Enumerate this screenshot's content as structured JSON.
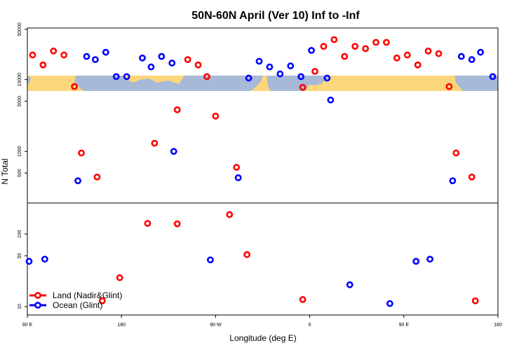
{
  "chart_data": {
    "type": "scatter",
    "title": "50N-60N April (Ver 10)   Inf to -Inf",
    "xlabel": "Longitude (deg E)",
    "ylabel": "N Total",
    "x_range": [
      -90,
      180
    ],
    "x_ticks": [
      {
        "value": -90,
        "label": "90 E"
      },
      {
        "value": -36,
        "label": "180"
      },
      {
        "value": 18,
        "label": "90 W"
      },
      {
        "value": 72,
        "label": "0"
      },
      {
        "value": 126,
        "label": "90 E"
      },
      {
        "value": 180,
        "label": "180"
      }
    ],
    "scale": "log",
    "upper_panel": {
      "y_range": [
        200,
        50000
      ],
      "y_ticks": [
        500,
        1000,
        5000,
        10000,
        50000
      ],
      "map_band": true
    },
    "lower_panel": {
      "y_range": [
        8,
        250
      ],
      "y_ticks": [
        10,
        50,
        100
      ]
    },
    "legend": {
      "position": "bottom-left",
      "entries": [
        {
          "label": "Land (Nadir&Glint)",
          "color": "#ff0000"
        },
        {
          "label": "Ocean (Glint)",
          "color": "#0000ff"
        }
      ]
    },
    "series": [
      {
        "name": "Land (Nadir&Glint)",
        "color": "#ff0000",
        "upper": [
          {
            "x": -87,
            "y": 22000
          },
          {
            "x": -81,
            "y": 16000
          },
          {
            "x": -75,
            "y": 25000
          },
          {
            "x": -69,
            "y": 22000
          },
          {
            "x": -63,
            "y": 8000
          },
          {
            "x": -59,
            "y": 950
          },
          {
            "x": -50,
            "y": 440
          },
          {
            "x": -17,
            "y": 1300
          },
          {
            "x": -4,
            "y": 3800
          },
          {
            "x": 2,
            "y": 19000
          },
          {
            "x": 8,
            "y": 16000
          },
          {
            "x": 13,
            "y": 11000
          },
          {
            "x": 18,
            "y": 3100
          },
          {
            "x": 30,
            "y": 600
          },
          {
            "x": 68,
            "y": 7800
          },
          {
            "x": 75,
            "y": 13000
          },
          {
            "x": 80,
            "y": 29000
          },
          {
            "x": 86,
            "y": 36000
          },
          {
            "x": 92,
            "y": 21000
          },
          {
            "x": 98,
            "y": 29000
          },
          {
            "x": 104,
            "y": 27000
          },
          {
            "x": 110,
            "y": 33000
          },
          {
            "x": 116,
            "y": 33000
          },
          {
            "x": 122,
            "y": 20000
          },
          {
            "x": 128,
            "y": 22000
          },
          {
            "x": 134,
            "y": 16000
          },
          {
            "x": 140,
            "y": 25000
          },
          {
            "x": 146,
            "y": 23000
          },
          {
            "x": 152,
            "y": 8000
          },
          {
            "x": 156,
            "y": 950
          },
          {
            "x": 165,
            "y": 440
          }
        ],
        "lower": [
          {
            "x": -47,
            "y": 12
          },
          {
            "x": -37,
            "y": 25
          },
          {
            "x": -21,
            "y": 140
          },
          {
            "x": -4,
            "y": 138
          },
          {
            "x": 26,
            "y": 185
          },
          {
            "x": 36,
            "y": 52
          },
          {
            "x": 68,
            "y": 12.5
          },
          {
            "x": 167,
            "y": 12
          }
        ]
      },
      {
        "name": "Ocean (Glint)",
        "color": "#0000ff",
        "upper": [
          {
            "x": -61,
            "y": 390
          },
          {
            "x": -56,
            "y": 21000
          },
          {
            "x": -51,
            "y": 19000
          },
          {
            "x": -45,
            "y": 24000
          },
          {
            "x": -39,
            "y": 11000
          },
          {
            "x": -33,
            "y": 11000
          },
          {
            "x": -24,
            "y": 20000
          },
          {
            "x": -19,
            "y": 15000
          },
          {
            "x": -13,
            "y": 21000
          },
          {
            "x": -7,
            "y": 17000
          },
          {
            "x": -6,
            "y": 1000
          },
          {
            "x": 31,
            "y": 430
          },
          {
            "x": 37,
            "y": 10500
          },
          {
            "x": 43,
            "y": 18000
          },
          {
            "x": 49,
            "y": 15000
          },
          {
            "x": 55,
            "y": 12000
          },
          {
            "x": 61,
            "y": 15500
          },
          {
            "x": 67,
            "y": 11000
          },
          {
            "x": 73,
            "y": 25500
          },
          {
            "x": 82,
            "y": 10500
          },
          {
            "x": 84,
            "y": 5200
          },
          {
            "x": 154,
            "y": 390
          },
          {
            "x": 159,
            "y": 21000
          },
          {
            "x": 165,
            "y": 19000
          },
          {
            "x": 170,
            "y": 24000
          },
          {
            "x": 177,
            "y": 11000
          }
        ],
        "lower": [
          {
            "x": -89,
            "y": 42
          },
          {
            "x": -80,
            "y": 45
          },
          {
            "x": 15,
            "y": 44
          },
          {
            "x": 95,
            "y": 20
          },
          {
            "x": 118,
            "y": 11
          },
          {
            "x": 133,
            "y": 42
          },
          {
            "x": 141,
            "y": 45
          }
        ]
      }
    ]
  }
}
